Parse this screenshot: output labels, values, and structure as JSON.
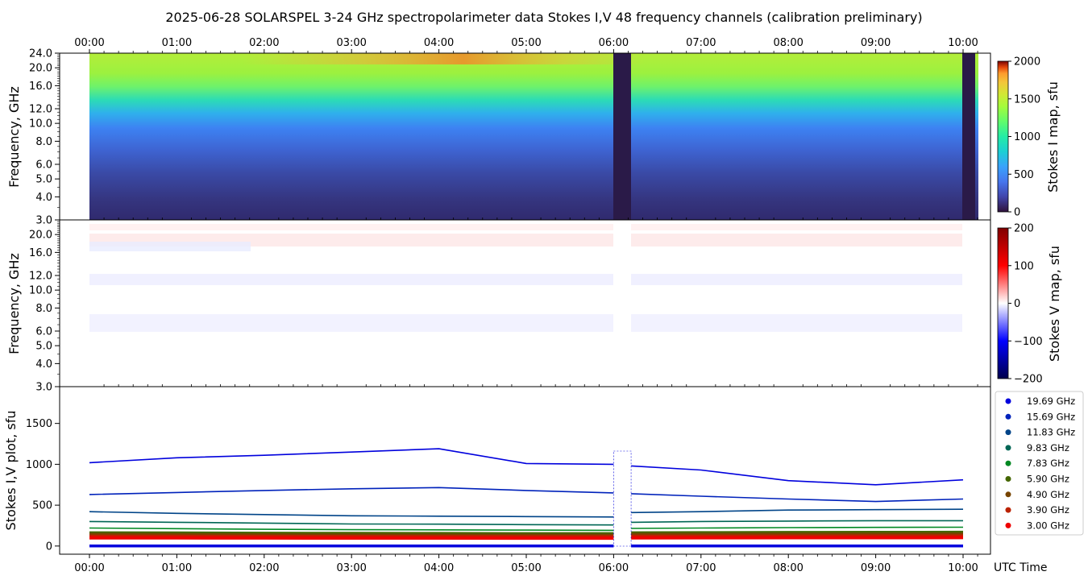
{
  "title": "2025-06-28  SOLARSPEL  3-24 GHz spectropolarimeter data   Stokes I,V   48 frequency channels   (calibration preliminary)",
  "time_ticks": [
    "00:00",
    "01:00",
    "02:00",
    "03:00",
    "04:00",
    "05:00",
    "06:00",
    "07:00",
    "08:00",
    "09:00",
    "10:00"
  ],
  "x_label": "UTC Time",
  "colors": {
    "v_pos": "#cc0000",
    "v_neg": "#0000cc"
  },
  "chart_data": [
    {
      "type": "heatmap",
      "panel": "stokes-i-map",
      "ylabel": "Frequency, GHz",
      "y_ticks": [
        "3.0",
        "4.0",
        "5.0",
        "6.0",
        "8.0",
        "10.0",
        "12.0",
        "16.0",
        "20.0",
        "24.0"
      ],
      "y_scale": "log",
      "ylim": [
        3.0,
        24.0
      ],
      "x_range_utc": [
        "00:00",
        "10:10"
      ],
      "data_gaps_utc": [
        [
          "06:00",
          "06:11"
        ],
        [
          "10:00",
          "10:08"
        ]
      ],
      "colorbar": {
        "label": "Stokes I map, sfu",
        "ticks": [
          "0",
          "500",
          "1000",
          "1500",
          "2000"
        ],
        "range": [
          0,
          2000
        ],
        "colormap": "turbo"
      }
    },
    {
      "type": "heatmap",
      "panel": "stokes-v-map",
      "ylabel": "Frequency, GHz",
      "y_ticks": [
        "3.0",
        "4.0",
        "5.0",
        "6.0",
        "8.0",
        "10.0",
        "12.0",
        "16.0",
        "20.0"
      ],
      "y_scale": "log",
      "ylim": [
        3.0,
        24.0
      ],
      "colorbar": {
        "label": "Stokes V map, sfu",
        "ticks": [
          "200",
          "100",
          "0",
          "−100",
          "−200"
        ],
        "range": [
          -200,
          200
        ],
        "colormap": "seismic"
      }
    },
    {
      "type": "line",
      "panel": "stokes-iv-plot",
      "ylabel": "Stokes I,V plot, sfu",
      "y_ticks": [
        "0",
        "500",
        "1000",
        "1500"
      ],
      "ylim": [
        -100,
        1950
      ],
      "x_hours": [
        0.0,
        1.0,
        2.0,
        3.0,
        4.0,
        5.0,
        6.0,
        6.2,
        7.0,
        8.0,
        9.0,
        10.0
      ],
      "gap_hours": [
        6.0,
        6.2
      ],
      "series": [
        {
          "name": "19.69 GHz",
          "color": "#0000dd",
          "values": [
            1020,
            1080,
            1110,
            1150,
            1190,
            1010,
            1000,
            980,
            930,
            800,
            750,
            810
          ]
        },
        {
          "name": "15.69 GHz",
          "color": "#0022bb",
          "values": [
            630,
            655,
            680,
            700,
            715,
            680,
            650,
            640,
            610,
            575,
            545,
            575
          ]
        },
        {
          "name": "11.83 GHz",
          "color": "#004488",
          "values": [
            420,
            400,
            385,
            370,
            365,
            360,
            355,
            410,
            420,
            440,
            445,
            450
          ]
        },
        {
          "name": "9.83 GHz",
          "color": "#006655",
          "values": [
            300,
            290,
            280,
            270,
            268,
            262,
            258,
            290,
            300,
            305,
            310,
            310
          ]
        },
        {
          "name": "7.83 GHz",
          "color": "#008822",
          "values": [
            220,
            212,
            205,
            200,
            198,
            195,
            192,
            215,
            220,
            225,
            228,
            230
          ]
        },
        {
          "name": "5.90 GHz",
          "color": "#446600",
          "values": [
            160,
            158,
            155,
            153,
            152,
            150,
            150,
            160,
            162,
            165,
            166,
            167
          ]
        },
        {
          "name": "4.90 GHz",
          "color": "#774400",
          "values": [
            140,
            138,
            136,
            134,
            133,
            132,
            131,
            140,
            141,
            143,
            144,
            145
          ]
        },
        {
          "name": "3.90 GHz",
          "color": "#bb2200",
          "values": [
            120,
            119,
            118,
            117,
            116,
            115,
            115,
            120,
            121,
            122,
            123,
            123
          ]
        },
        {
          "name": "3.00 GHz",
          "color": "#ee0000",
          "values": [
            100,
            99,
            98,
            97,
            97,
            96,
            96,
            100,
            101,
            102,
            102,
            103
          ]
        }
      ],
      "v_traces": [
        {
          "values": [
            5,
            5,
            5,
            5,
            5,
            5,
            5,
            5,
            5,
            5,
            5,
            5
          ]
        },
        {
          "values": [
            -3,
            -3,
            -3,
            -3,
            -3,
            -3,
            -3,
            -3,
            -3,
            -3,
            -3,
            -3
          ]
        }
      ]
    }
  ]
}
